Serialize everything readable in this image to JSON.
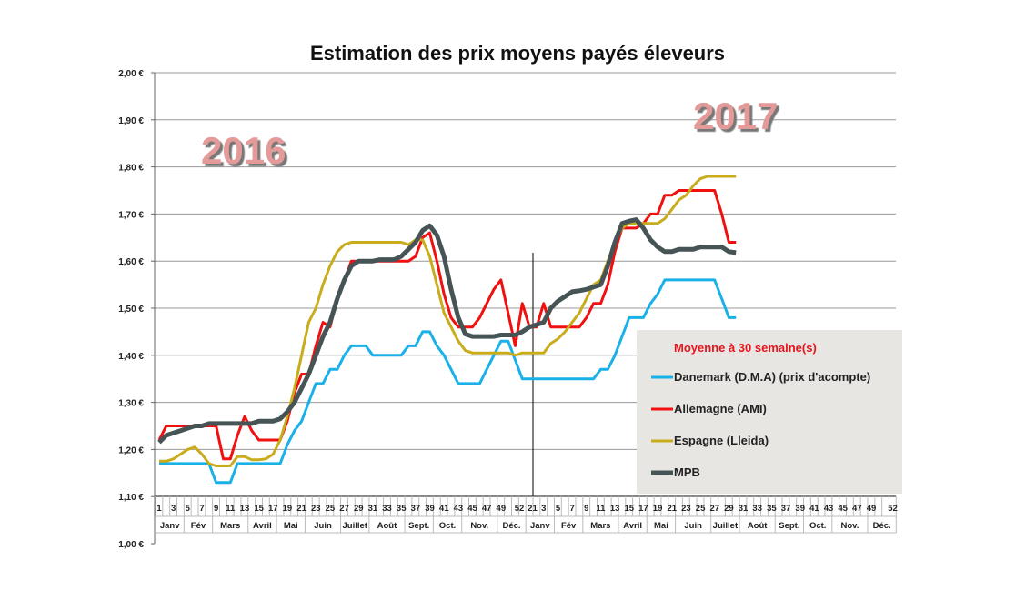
{
  "chart_data": {
    "type": "line",
    "title": "Estimation des prix moyens payés éleveurs",
    "year_labels": [
      "2016",
      "2017"
    ],
    "ylim": [
      1.0,
      2.0
    ],
    "y_ticks": [
      "1,00 €",
      "1,10 €",
      "1,20 €",
      "1,30 €",
      "1,40 €",
      "1,50 €",
      "1,60 €",
      "1,70 €",
      "1,80 €",
      "1,90 €",
      "2,00 €"
    ],
    "x_week_ticks_2016": [
      "1",
      "3",
      "5",
      "7",
      "9",
      "11",
      "13",
      "15",
      "17",
      "19",
      "21",
      "23",
      "25",
      "27",
      "29",
      "31",
      "33",
      "35",
      "37",
      "39",
      "41",
      "43",
      "45",
      "47",
      "49",
      "52"
    ],
    "x_week_ticks_2017": [
      "21",
      "3",
      "5",
      "7",
      "9",
      "11",
      "13",
      "15",
      "17",
      "19",
      "21",
      "23",
      "25",
      "27",
      "29",
      "31",
      "33",
      "35",
      "37",
      "39",
      "41",
      "43",
      "45",
      "47",
      "49",
      "52"
    ],
    "months": [
      {
        "label": "Janv",
        "weeks": 4
      },
      {
        "label": "Fév",
        "weeks": 4
      },
      {
        "label": "Mars",
        "weeks": 5
      },
      {
        "label": "Avril",
        "weeks": 4
      },
      {
        "label": "Mai",
        "weeks": 4
      },
      {
        "label": "Juin",
        "weeks": 5
      },
      {
        "label": "Juillet",
        "weeks": 4
      },
      {
        "label": "Août",
        "weeks": 5
      },
      {
        "label": "Sept.",
        "weeks": 4
      },
      {
        "label": "Oct.",
        "weeks": 4
      },
      {
        "label": "Nov.",
        "weeks": 5
      },
      {
        "label": "Déc.",
        "weeks": 4
      }
    ],
    "legend_title": "Moyenne à  30 semaine(s)",
    "legend_position": "bottom-right",
    "grid": true,
    "series": [
      {
        "name": "Danemark (D.M.A) (prix d'acompte)",
        "color": "#1ab0e8",
        "width": 3,
        "values_2016": [
          1.17,
          1.17,
          1.17,
          1.17,
          1.17,
          1.17,
          1.17,
          1.17,
          1.13,
          1.13,
          1.13,
          1.17,
          1.17,
          1.17,
          1.17,
          1.17,
          1.17,
          1.17,
          1.21,
          1.24,
          1.26,
          1.3,
          1.34,
          1.34,
          1.37,
          1.37,
          1.4,
          1.42,
          1.42,
          1.42,
          1.4,
          1.4,
          1.4,
          1.4,
          1.4,
          1.42,
          1.42,
          1.45,
          1.45,
          1.42,
          1.4,
          1.37,
          1.34,
          1.34,
          1.34,
          1.34,
          1.37,
          1.4,
          1.43,
          1.43,
          1.39,
          1.35
        ],
        "values_2017": [
          1.35,
          1.35,
          1.35,
          1.35,
          1.35,
          1.35,
          1.35,
          1.35,
          1.35,
          1.35,
          1.37,
          1.37,
          1.4,
          1.44,
          1.48,
          1.48,
          1.48,
          1.51,
          1.53,
          1.56,
          1.56,
          1.56,
          1.56,
          1.56,
          1.56,
          1.56,
          1.56,
          1.52,
          1.48,
          1.48
        ]
      },
      {
        "name": "Allemagne (AMI)",
        "color": "#f01010",
        "width": 3,
        "values_2016": [
          1.22,
          1.25,
          1.25,
          1.25,
          1.25,
          1.25,
          1.25,
          1.25,
          1.25,
          1.18,
          1.18,
          1.23,
          1.27,
          1.24,
          1.22,
          1.22,
          1.22,
          1.22,
          1.26,
          1.32,
          1.36,
          1.36,
          1.42,
          1.47,
          1.46,
          1.52,
          1.56,
          1.6,
          1.6,
          1.6,
          1.6,
          1.6,
          1.6,
          1.6,
          1.6,
          1.6,
          1.61,
          1.65,
          1.66,
          1.6,
          1.53,
          1.48,
          1.46,
          1.46,
          1.46,
          1.48,
          1.51,
          1.54,
          1.56,
          1.49,
          1.42,
          1.51
        ],
        "values_2017": [
          1.46,
          1.46,
          1.51,
          1.46,
          1.46,
          1.46,
          1.46,
          1.46,
          1.48,
          1.51,
          1.51,
          1.55,
          1.62,
          1.67,
          1.67,
          1.67,
          1.68,
          1.7,
          1.7,
          1.74,
          1.74,
          1.75,
          1.75,
          1.75,
          1.75,
          1.75,
          1.75,
          1.7,
          1.64,
          1.64
        ]
      },
      {
        "name": "Espagne (Lleida)",
        "color": "#c9ac1c",
        "width": 3,
        "values_2016": [
          1.175,
          1.175,
          1.18,
          1.19,
          1.2,
          1.205,
          1.19,
          1.17,
          1.165,
          1.165,
          1.165,
          1.185,
          1.185,
          1.178,
          1.178,
          1.18,
          1.19,
          1.22,
          1.27,
          1.33,
          1.4,
          1.47,
          1.5,
          1.55,
          1.59,
          1.62,
          1.635,
          1.64,
          1.64,
          1.64,
          1.64,
          1.64,
          1.64,
          1.64,
          1.64,
          1.635,
          1.645,
          1.645,
          1.61,
          1.55,
          1.49,
          1.46,
          1.43,
          1.41,
          1.405,
          1.405,
          1.405,
          1.405,
          1.405,
          1.405,
          1.4,
          1.405
        ],
        "values_2017": [
          1.405,
          1.405,
          1.405,
          1.425,
          1.435,
          1.45,
          1.47,
          1.49,
          1.52,
          1.55,
          1.56,
          1.6,
          1.64,
          1.67,
          1.68,
          1.68,
          1.68,
          1.68,
          1.68,
          1.69,
          1.71,
          1.73,
          1.74,
          1.76,
          1.775,
          1.78,
          1.78,
          1.78,
          1.78,
          1.78
        ]
      },
      {
        "name": "MPB",
        "color": "#465456",
        "width": 5,
        "values_2016": [
          1.215,
          1.23,
          1.235,
          1.24,
          1.245,
          1.25,
          1.25,
          1.255,
          1.255,
          1.255,
          1.255,
          1.255,
          1.255,
          1.255,
          1.26,
          1.26,
          1.26,
          1.265,
          1.28,
          1.3,
          1.33,
          1.36,
          1.4,
          1.44,
          1.47,
          1.52,
          1.56,
          1.59,
          1.6,
          1.6,
          1.6,
          1.603,
          1.603,
          1.603,
          1.61,
          1.625,
          1.64,
          1.665,
          1.675,
          1.655,
          1.61,
          1.54,
          1.48,
          1.445,
          1.44,
          1.44,
          1.44,
          1.44,
          1.443,
          1.443,
          1.443,
          1.45
        ],
        "values_2017": [
          1.46,
          1.465,
          1.47,
          1.5,
          1.515,
          1.525,
          1.535,
          1.537,
          1.54,
          1.545,
          1.55,
          1.59,
          1.64,
          1.68,
          1.685,
          1.688,
          1.67,
          1.645,
          1.63,
          1.62,
          1.62,
          1.625,
          1.625,
          1.625,
          1.63,
          1.63,
          1.63,
          1.63,
          1.62,
          1.618
        ]
      }
    ]
  }
}
